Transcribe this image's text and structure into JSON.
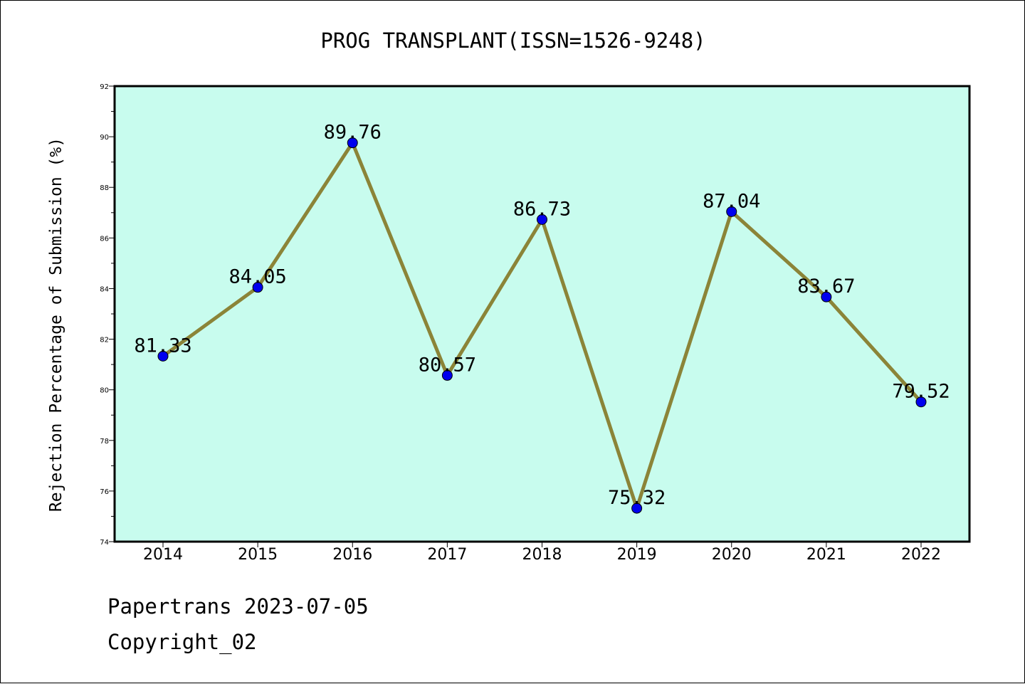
{
  "chart_data": {
    "type": "line",
    "title": "PROG TRANSPLANT(ISSN=1526-9248)",
    "xlabel": "",
    "ylabel": "Rejection Percentage of Submission (%)",
    "categories": [
      "2014",
      "2015",
      "2016",
      "2017",
      "2018",
      "2019",
      "2020",
      "2021",
      "2022"
    ],
    "series": [
      {
        "values": [
          81.33,
          84.05,
          89.76,
          80.57,
          86.73,
          75.32,
          87.04,
          83.67,
          79.52
        ],
        "labels": [
          "81.33",
          "84.05",
          "89.76",
          "80.57",
          "86.73",
          "75.32",
          "87.04",
          "83.67",
          "79.52"
        ]
      }
    ],
    "ylim": [
      74,
      92
    ],
    "yticks": [
      "74",
      "76",
      "78",
      "80",
      "82",
      "84",
      "86",
      "88",
      "90",
      "92"
    ],
    "grid": false,
    "colors": {
      "plot_background": "#c8fcee",
      "line": "#8b8438",
      "marker": "#0000ee"
    }
  },
  "footer": {
    "line1": "Papertrans 2023-07-05",
    "line2": "Copyright_02"
  }
}
